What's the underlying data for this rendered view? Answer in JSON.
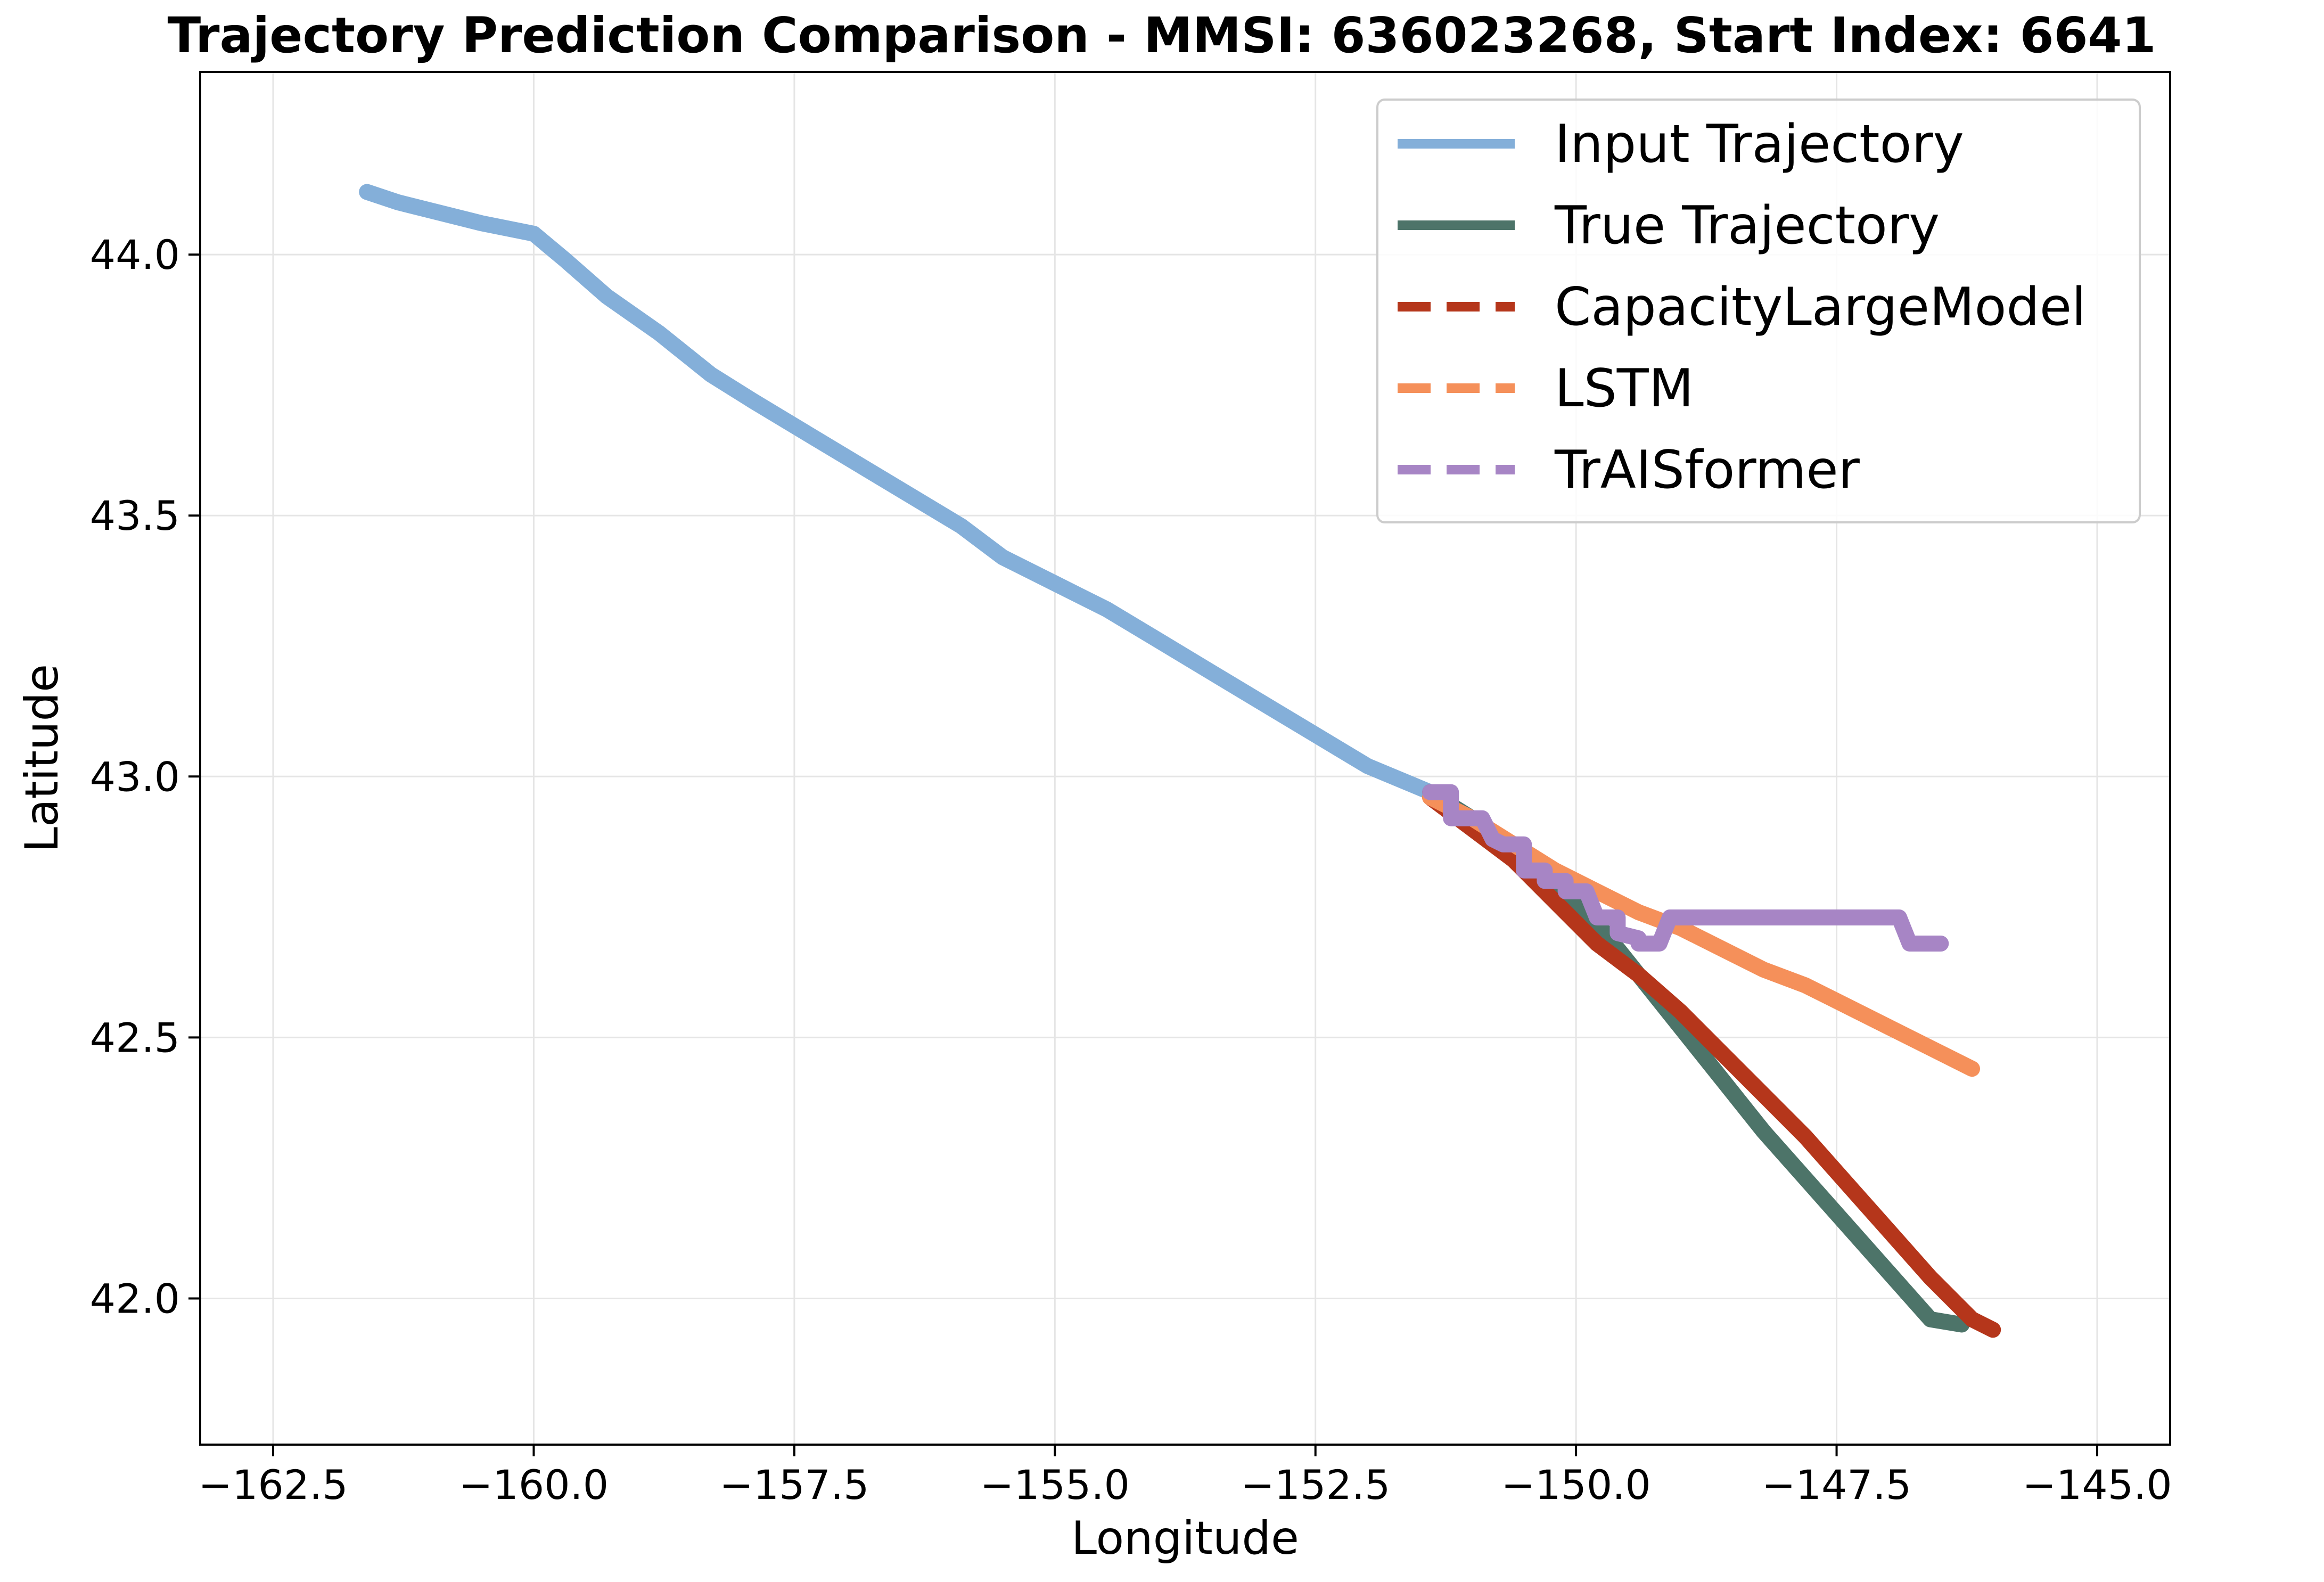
{
  "chart_data": {
    "type": "line",
    "title": "Trajectory Prediction Comparison - MMSI: 636023268, Start Index: 6641",
    "xlabel": "Longitude",
    "ylabel": "Latitude",
    "xlim": [
      -163.2,
      -144.3
    ],
    "ylim": [
      41.72,
      44.35
    ],
    "xticks": [
      -162.5,
      -160.0,
      -157.5,
      -155.0,
      -152.5,
      -150.0,
      -147.5,
      -145.0
    ],
    "xtick_labels": [
      "−162.5",
      "−160.0",
      "−157.5",
      "−155.0",
      "−152.5",
      "−150.0",
      "−147.5",
      "−145.0"
    ],
    "yticks": [
      42.0,
      42.5,
      43.0,
      43.5,
      44.0
    ],
    "ytick_labels": [
      "42.0",
      "42.5",
      "43.0",
      "43.5",
      "44.0"
    ],
    "grid": true,
    "legend_position": "top-right",
    "series": [
      {
        "name": "Input Trajectory",
        "color": "#84afd9",
        "style": "solid",
        "x": [
          -161.6,
          -161.3,
          -160.9,
          -160.5,
          -160.0,
          -159.7,
          -159.3,
          -158.8,
          -158.3,
          -157.9,
          -157.4,
          -156.9,
          -156.4,
          -155.9,
          -155.5,
          -155.0,
          -154.5,
          -154.0,
          -153.5,
          -153.0,
          -152.5,
          -152.0,
          -151.4
        ],
        "y": [
          44.12,
          44.1,
          44.08,
          44.06,
          44.04,
          43.99,
          43.92,
          43.85,
          43.77,
          43.72,
          43.66,
          43.6,
          43.54,
          43.48,
          43.42,
          43.37,
          43.32,
          43.26,
          43.2,
          43.14,
          43.08,
          43.02,
          42.97
        ]
      },
      {
        "name": "True Trajectory",
        "color": "#4d7469",
        "style": "solid",
        "x": [
          -151.4,
          -151.0,
          -150.6,
          -150.2,
          -149.8,
          -149.4,
          -149.0,
          -148.6,
          -148.2,
          -147.8,
          -147.4,
          -147.0,
          -146.6,
          -146.3
        ],
        "y": [
          42.97,
          42.92,
          42.86,
          42.79,
          42.72,
          42.62,
          42.52,
          42.42,
          42.32,
          42.23,
          42.14,
          42.05,
          41.96,
          41.95
        ]
      },
      {
        "name": "CapacityLargeModel",
        "color": "#b5361b",
        "style": "dashed",
        "x": [
          -151.4,
          -151.0,
          -150.6,
          -150.2,
          -149.8,
          -149.4,
          -149.0,
          -148.6,
          -148.2,
          -147.8,
          -147.4,
          -147.0,
          -146.6,
          -146.2,
          -146.0
        ],
        "y": [
          42.96,
          42.9,
          42.84,
          42.76,
          42.68,
          42.62,
          42.55,
          42.47,
          42.39,
          42.31,
          42.22,
          42.13,
          42.04,
          41.96,
          41.94
        ]
      },
      {
        "name": "LSTM",
        "color": "#f5905a",
        "style": "dashed",
        "x": [
          -151.4,
          -151.0,
          -150.6,
          -150.2,
          -149.8,
          -149.4,
          -149.0,
          -148.6,
          -148.2,
          -147.8,
          -147.4,
          -147.0,
          -146.6,
          -146.2
        ],
        "y": [
          42.96,
          42.92,
          42.87,
          42.82,
          42.78,
          42.74,
          42.71,
          42.67,
          42.63,
          42.6,
          42.56,
          42.52,
          42.48,
          42.44
        ]
      },
      {
        "name": "TrAISformer",
        "color": "#a785c5",
        "style": "dashed",
        "x": [
          -151.4,
          -151.2,
          -151.2,
          -151.0,
          -150.9,
          -150.8,
          -150.7,
          -150.5,
          -150.5,
          -150.3,
          -150.3,
          -150.1,
          -150.1,
          -149.9,
          -149.8,
          -149.6,
          -149.6,
          -149.4,
          -149.4,
          -149.2,
          -149.1,
          -148.5,
          -148.0,
          -147.5,
          -147.1,
          -146.9,
          -146.8,
          -146.5
        ],
        "y": [
          42.97,
          42.97,
          42.92,
          42.92,
          42.92,
          42.88,
          42.87,
          42.87,
          42.82,
          42.82,
          42.8,
          42.8,
          42.78,
          42.78,
          42.73,
          42.73,
          42.7,
          42.69,
          42.68,
          42.68,
          42.73,
          42.73,
          42.73,
          42.73,
          42.73,
          42.73,
          42.68,
          42.68
        ]
      }
    ]
  }
}
